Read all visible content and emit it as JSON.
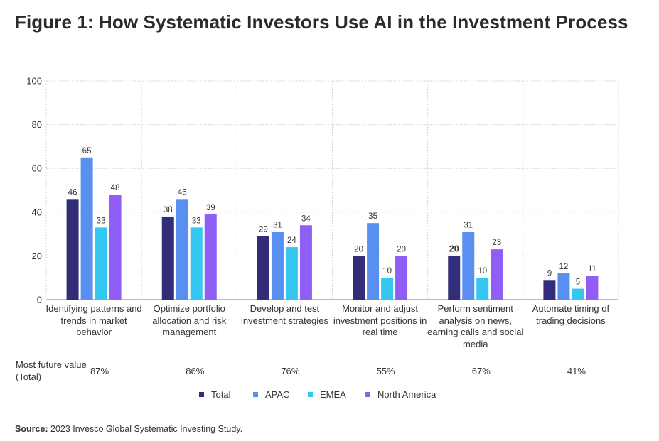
{
  "title": "Figure 1: How Systematic Investors Use AI in the Investment Process",
  "source": {
    "label": "Source:",
    "text": "2023 Invesco Global Systematic Investing Study."
  },
  "most_future_value": {
    "label": "Most future value (Total)",
    "values": [
      "87%",
      "86%",
      "76%",
      "55%",
      "67%",
      "41%"
    ]
  },
  "colors": {
    "Total": "#312d78",
    "APAC": "#5a8ff2",
    "EMEA": "#33c7f2",
    "North America": "#8f5ef5"
  },
  "chart_data": {
    "type": "bar",
    "categories": [
      "Identifying patterns and trends in market behavior",
      "Optimize portfolio allocation and risk management",
      "Develop and test investment strategies",
      "Monitor and adjust investment positions in real time",
      "Perform sentiment analysis on news, earning calls and social media",
      "Automate timing of trading decisions"
    ],
    "series": [
      {
        "name": "Total",
        "values": [
          46,
          38,
          29,
          20,
          20,
          9
        ]
      },
      {
        "name": "APAC",
        "values": [
          65,
          46,
          31,
          35,
          31,
          12
        ]
      },
      {
        "name": "EMEA",
        "values": [
          33,
          33,
          24,
          10,
          10,
          5
        ]
      },
      {
        "name": "North America",
        "values": [
          48,
          39,
          34,
          20,
          23,
          11
        ]
      }
    ],
    "ylim": [
      0,
      100
    ],
    "yticks": [
      0,
      20,
      40,
      60,
      80,
      100
    ],
    "grid": true,
    "legend": "bottom"
  }
}
